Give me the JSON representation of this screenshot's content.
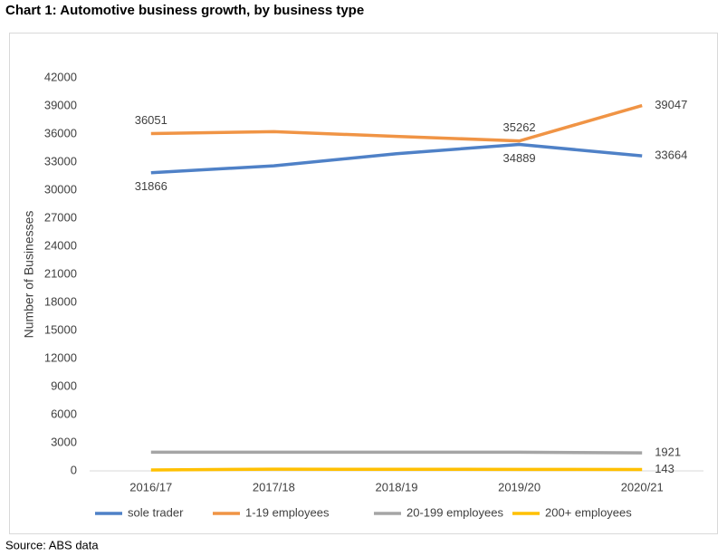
{
  "chart_data": {
    "type": "line",
    "title": "Chart 1: Automotive business growth, by business type",
    "source": "Source: ABS data",
    "y_label": "Number of Businesses",
    "categories": [
      "2016/17",
      "2017/18",
      "2018/19",
      "2019/20",
      "2020/21"
    ],
    "series": [
      {
        "name": "sole trader",
        "color": "#4f81c7",
        "values": [
          31866,
          32600,
          33900,
          34889,
          33664
        ],
        "value_labels": [
          "31866",
          null,
          null,
          "34889",
          "33664"
        ]
      },
      {
        "name": "1-19 employees",
        "color": "#f09445",
        "values": [
          36051,
          36250,
          35750,
          35262,
          39047
        ],
        "value_labels": [
          "36051",
          null,
          null,
          "35262",
          "39047"
        ]
      },
      {
        "name": "20-199 employees",
        "color": "#a5a5a5",
        "values": [
          2000,
          2000,
          2000,
          2000,
          1921
        ],
        "value_labels": [
          null,
          null,
          null,
          null,
          "1921"
        ]
      },
      {
        "name": "200+ employees",
        "color": "#ffc000",
        "values": [
          100,
          180,
          170,
          160,
          143
        ],
        "value_labels": [
          null,
          null,
          null,
          null,
          "143"
        ]
      }
    ],
    "ylim": [
      0,
      42000
    ],
    "yticks": [
      0,
      3000,
      6000,
      9000,
      12000,
      15000,
      18000,
      21000,
      24000,
      27000,
      30000,
      33000,
      36000,
      39000,
      42000
    ],
    "grid": false,
    "legend": "bottom"
  }
}
